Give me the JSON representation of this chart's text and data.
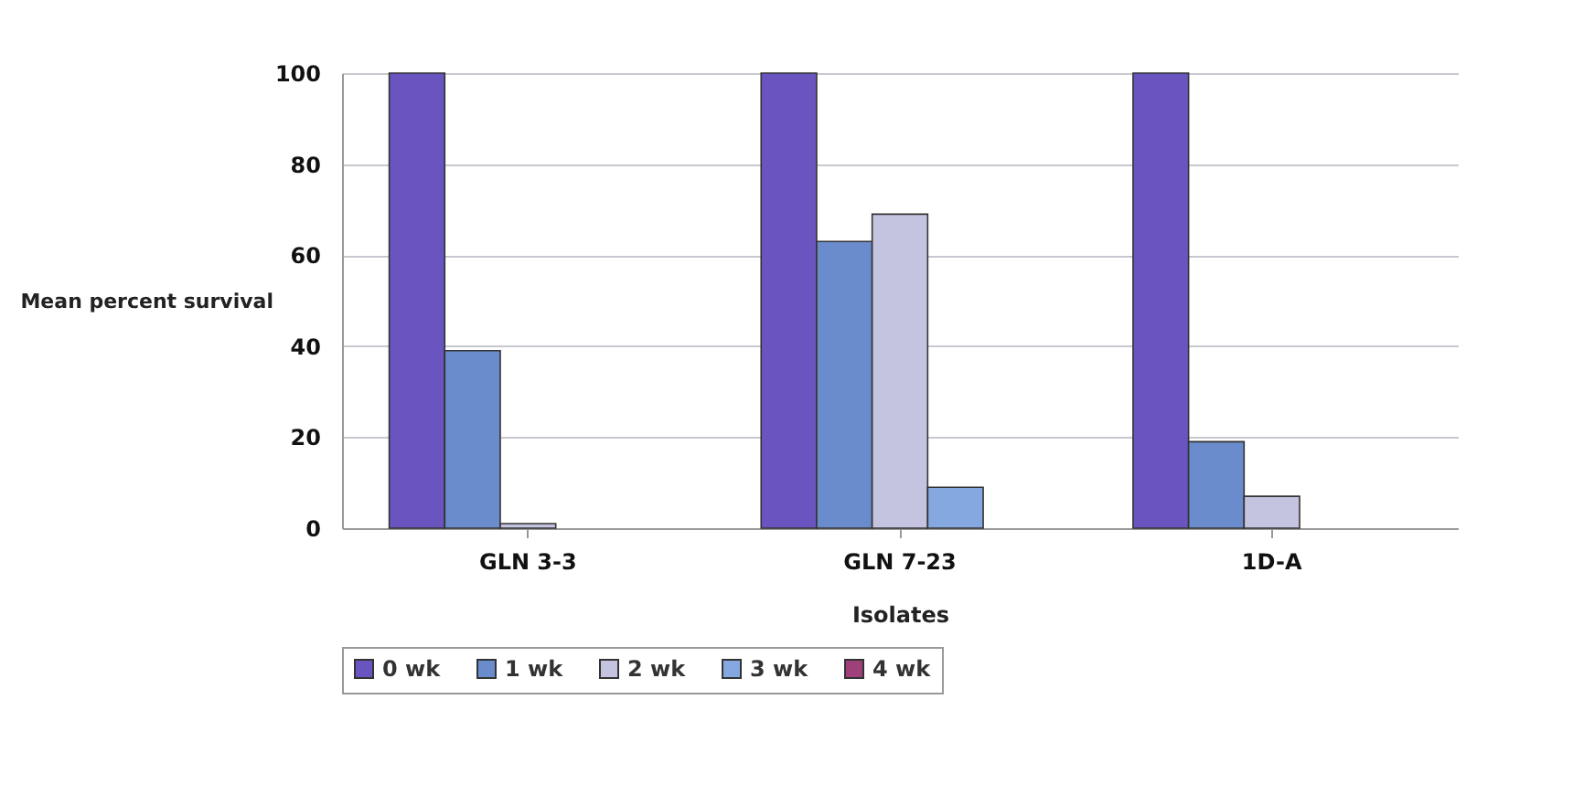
{
  "chart_data": {
    "type": "bar",
    "xlabel": "Isolates",
    "ylabel": "Mean percent survival",
    "categories": [
      "GLN 3-3",
      "GLN 7-23",
      "1D-A"
    ],
    "series": [
      {
        "name": "0 wk",
        "color": "#6a55c0",
        "values": [
          100,
          100,
          100
        ]
      },
      {
        "name": "1 wk",
        "color": "#6a8ccc",
        "values": [
          39,
          63,
          19
        ]
      },
      {
        "name": "2 wk",
        "color": "#c4c4e0",
        "values": [
          1,
          69,
          7
        ]
      },
      {
        "name": "3 wk",
        "color": "#86a8e0",
        "values": [
          0,
          9,
          0
        ]
      },
      {
        "name": "4 wk",
        "color": "#a0407a",
        "values": [
          0,
          0,
          0
        ]
      }
    ],
    "ylim": [
      0,
      100
    ],
    "yticks": [
      0,
      20,
      40,
      60,
      80,
      100
    ],
    "grid": "y",
    "legend": "bottom"
  }
}
